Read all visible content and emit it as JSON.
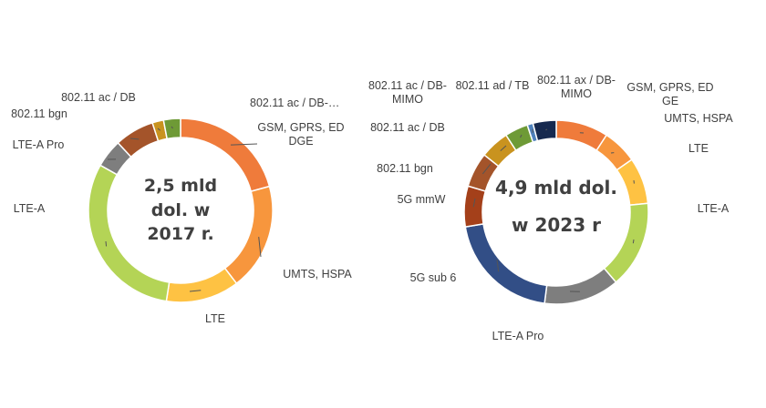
{
  "chart_data": [
    {
      "type": "pie",
      "center_text": [
        "2,5 mld",
        "dol. w",
        "2017 r."
      ],
      "categories": [
        "GSM, GPRS, ED DGE",
        "UMTS, HSPA",
        "LTE",
        "LTE-A",
        "LTE-A Pro",
        "802.11 bgn",
        "802.11 ac / DB",
        "802.11 ac / DB-…"
      ],
      "values": [
        21,
        19,
        13,
        31,
        5,
        7,
        2,
        3
      ],
      "colors": [
        "#EF7B3B",
        "#F7963D",
        "#FEC243",
        "#B4D456",
        "#7E7E7E",
        "#A4542A",
        "#C9931F",
        "#6E9A36"
      ]
    },
    {
      "type": "pie",
      "center_text": [
        "4,9 mld dol.",
        "w 2023 r"
      ],
      "categories": [
        "GSM, GPRS, ED GE",
        "UMTS, HSPA",
        "LTE",
        "LTE-A",
        "LTE-A Pro",
        "5G sub 6",
        "5G mmW",
        "802.11 bgn",
        "802.11 ac / DB",
        "802.11 ac / DB-MIMO",
        "802.11 ad / TB",
        "802.11 ax / DB-MIMO"
      ],
      "values": [
        9,
        6,
        8,
        15,
        13,
        20,
        7,
        6,
        5,
        4,
        1,
        4
      ],
      "colors": [
        "#EF7B3B",
        "#F7963D",
        "#FEC243",
        "#B4D456",
        "#7E7E7E",
        "#324E86",
        "#A4401A",
        "#A4542A",
        "#C9931F",
        "#6E9A36",
        "#4F82BD",
        "#16294F"
      ]
    }
  ]
}
